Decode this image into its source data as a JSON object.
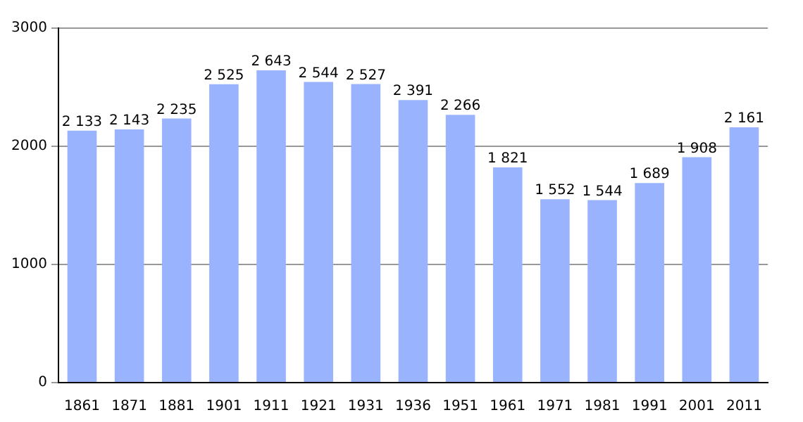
{
  "chart_data": {
    "type": "bar",
    "categories": [
      "1861",
      "1871",
      "1881",
      "1901",
      "1911",
      "1921",
      "1931",
      "1936",
      "1951",
      "1961",
      "1971",
      "1981",
      "1991",
      "2001",
      "2011"
    ],
    "values": [
      2133,
      2143,
      2235,
      2525,
      2643,
      2544,
      2527,
      2391,
      2266,
      1821,
      1552,
      1544,
      1689,
      1908,
      2161
    ],
    "value_labels": [
      "2 133",
      "2 143",
      "2 235",
      "2 525",
      "2 643",
      "2 544",
      "2 527",
      "2 391",
      "2 266",
      "1 821",
      "1 552",
      "1 544",
      "1 689",
      "1 908",
      "2 161"
    ],
    "color": "#99b3ff",
    "ylim": [
      0,
      3000
    ],
    "yticks": [
      0,
      1000,
      2000,
      3000
    ],
    "grid": "y",
    "legend": false
  }
}
